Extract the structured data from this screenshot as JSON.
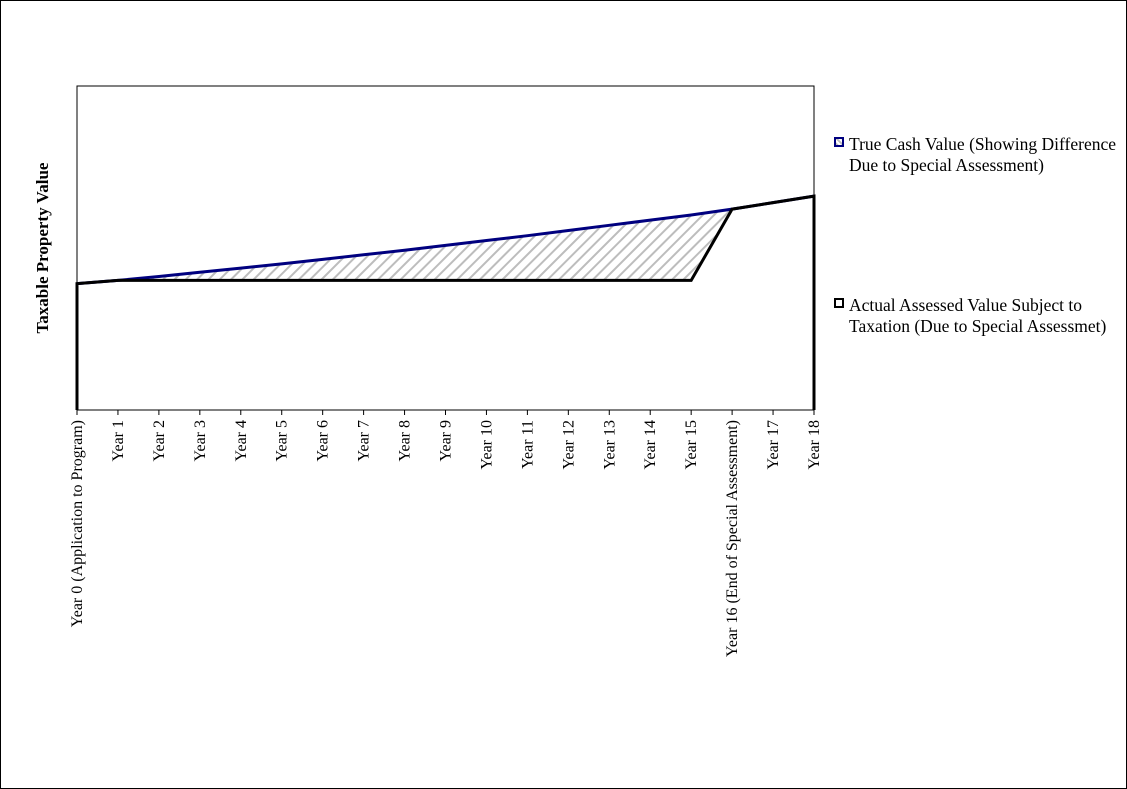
{
  "chart_data": {
    "type": "area",
    "title": "",
    "xlabel": "",
    "ylabel": "Taxable Property Value",
    "categories": [
      "Year 0 (Application to Program)",
      "Year 1",
      "Year 2",
      "Year 3",
      "Year 4",
      "Year 5",
      "Year 6",
      "Year 7",
      "Year 8",
      "Year 9",
      "Year 10",
      "Year 11",
      "Year 12",
      "Year 13",
      "Year 14",
      "Year 15",
      "Year 16 (End of Special Assessment)",
      "Year 17",
      "Year 18"
    ],
    "ylim": [
      0,
      100
    ],
    "grid": false,
    "legend_position": "right",
    "series": [
      {
        "name": "True Cash Value  (Showing Difference Due to Special Assessment)",
        "values": [
          39,
          40,
          41.2,
          42.5,
          43.8,
          45.1,
          46.5,
          47.9,
          49.3,
          50.8,
          52.3,
          53.8,
          55.4,
          57,
          58.6,
          60.2,
          62,
          64,
          66
        ],
        "color": "#00007f",
        "fill": "hatched-gray"
      },
      {
        "name": "Actual Assessed Value Subject to Taxation (Due to Special Assessmet)",
        "values": [
          39,
          40,
          40,
          40,
          40,
          40,
          40,
          40,
          40,
          40,
          40,
          40,
          40,
          40,
          40,
          40,
          62,
          64,
          66
        ],
        "color": "#000000",
        "fill": "white"
      }
    ]
  }
}
